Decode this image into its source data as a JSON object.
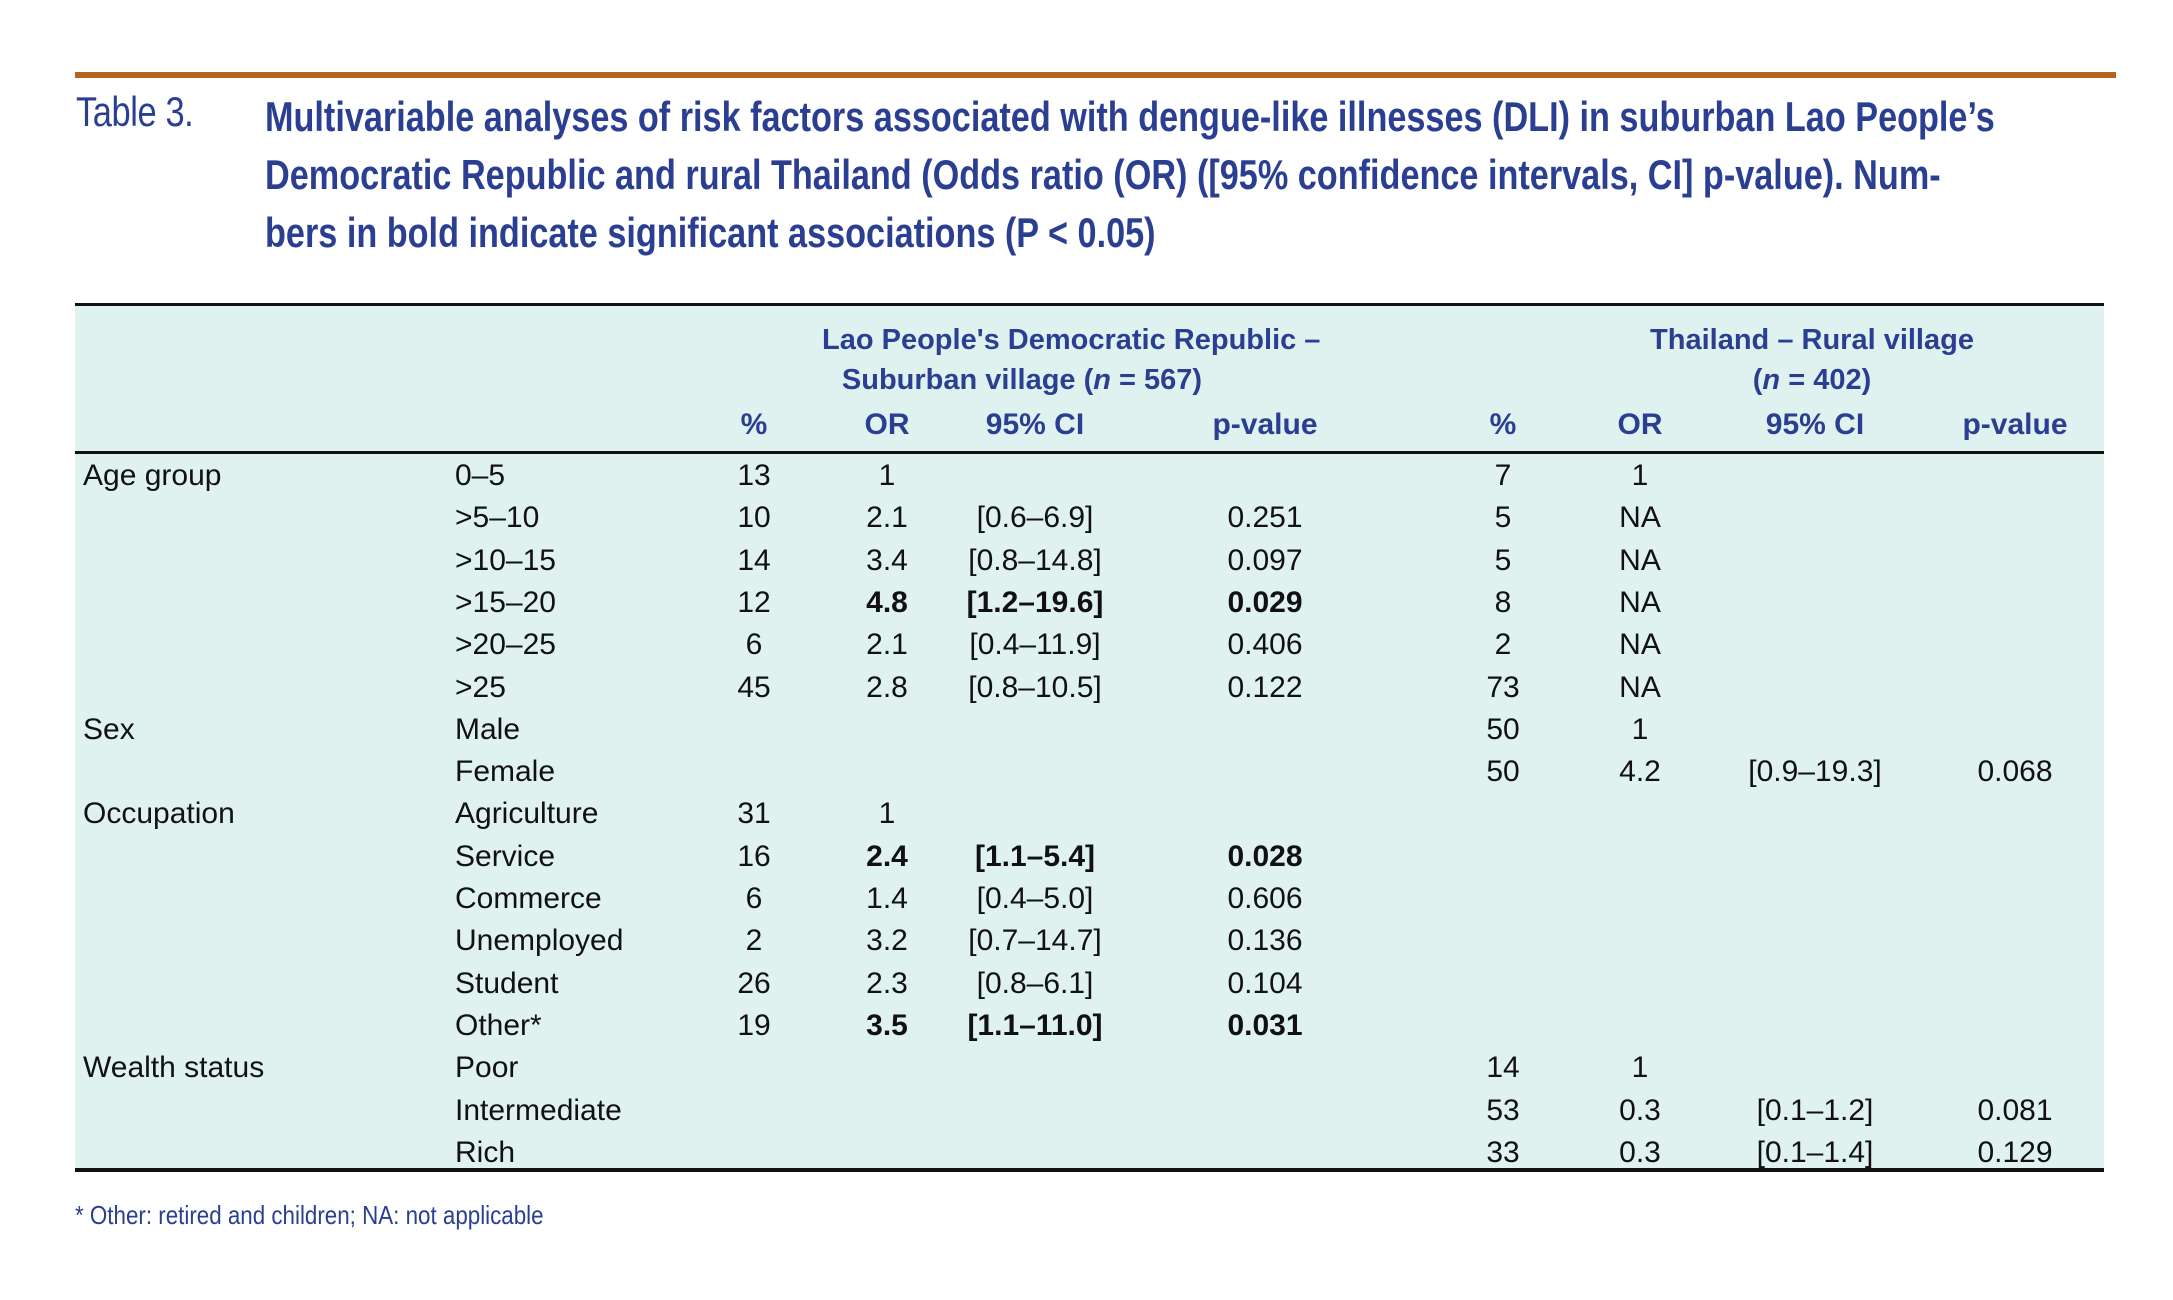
{
  "caption": {
    "label": "Table 3.",
    "lines": [
      "Multivariable analyses of risk factors associated with dengue-like illnesses (DLI) in suburban Lao People’s",
      "Democratic Republic and rural Thailand (Odds ratio (OR) ([95% confidence intervals, CI] p-value). Num-",
      "bers in bold indicate significant associations (P < 0.05)"
    ]
  },
  "colors": {
    "rule": "#b5651d",
    "caption_text": "#2b3f92",
    "table_bg": "#e0f2ef",
    "body_text": "#111111"
  },
  "table": {
    "groups": [
      {
        "line1": "Lao People's Democratic Republic –",
        "line2_prefix": "Suburban village (",
        "n_symbol": "n",
        "line2_suffix": " = 567)"
      },
      {
        "line1": "Thailand – Rural village",
        "line2_prefix": "(",
        "n_symbol": "n",
        "line2_suffix": " = 402)"
      }
    ],
    "column_headers": [
      "%",
      "OR",
      "95% CI",
      "p-value",
      "%",
      "OR",
      "95% CI",
      "p-value"
    ],
    "rows": [
      {
        "category": "Age group",
        "sub": "0–5",
        "lao": [
          "13",
          "1",
          "",
          ""
        ],
        "thai": [
          "7",
          "1",
          "",
          ""
        ],
        "lao_bold": false,
        "thai_bold": false
      },
      {
        "category": "",
        "sub": ">5–10",
        "lao": [
          "10",
          "2.1",
          "[0.6–6.9]",
          "0.251"
        ],
        "thai": [
          "5",
          "NA",
          "",
          ""
        ],
        "lao_bold": false,
        "thai_bold": false
      },
      {
        "category": "",
        "sub": ">10–15",
        "lao": [
          "14",
          "3.4",
          "[0.8–14.8]",
          "0.097"
        ],
        "thai": [
          "5",
          "NA",
          "",
          ""
        ],
        "lao_bold": false,
        "thai_bold": false
      },
      {
        "category": "",
        "sub": ">15–20",
        "lao": [
          "12",
          "4.8",
          "[1.2–19.6]",
          "0.029"
        ],
        "thai": [
          "8",
          "NA",
          "",
          ""
        ],
        "lao_bold": true,
        "thai_bold": false
      },
      {
        "category": "",
        "sub": ">20–25",
        "lao": [
          "6",
          "2.1",
          "[0.4–11.9]",
          "0.406"
        ],
        "thai": [
          "2",
          "NA",
          "",
          ""
        ],
        "lao_bold": false,
        "thai_bold": false
      },
      {
        "category": "",
        "sub": ">25",
        "lao": [
          "45",
          "2.8",
          "[0.8–10.5]",
          "0.122"
        ],
        "thai": [
          "73",
          "NA",
          "",
          ""
        ],
        "lao_bold": false,
        "thai_bold": false
      },
      {
        "category": "Sex",
        "sub": "Male",
        "lao": [
          "",
          "",
          "",
          ""
        ],
        "thai": [
          "50",
          "1",
          "",
          ""
        ],
        "lao_bold": false,
        "thai_bold": false
      },
      {
        "category": "",
        "sub": "Female",
        "lao": [
          "",
          "",
          "",
          ""
        ],
        "thai": [
          "50",
          "4.2",
          "[0.9–19.3]",
          "0.068"
        ],
        "lao_bold": false,
        "thai_bold": false
      },
      {
        "category": "Occupation",
        "sub": "Agriculture",
        "lao": [
          "31",
          "1",
          "",
          ""
        ],
        "thai": [
          "",
          "",
          "",
          ""
        ],
        "lao_bold": false,
        "thai_bold": false
      },
      {
        "category": "",
        "sub": "Service",
        "lao": [
          "16",
          "2.4",
          "[1.1–5.4]",
          "0.028"
        ],
        "thai": [
          "",
          "",
          "",
          ""
        ],
        "lao_bold": true,
        "thai_bold": false
      },
      {
        "category": "",
        "sub": "Commerce",
        "lao": [
          "6",
          "1.4",
          "[0.4–5.0]",
          "0.606"
        ],
        "thai": [
          "",
          "",
          "",
          ""
        ],
        "lao_bold": false,
        "thai_bold": false
      },
      {
        "category": "",
        "sub": "Unemployed",
        "lao": [
          "2",
          "3.2",
          "[0.7–14.7]",
          "0.136"
        ],
        "thai": [
          "",
          "",
          "",
          ""
        ],
        "lao_bold": false,
        "thai_bold": false
      },
      {
        "category": "",
        "sub": "Student",
        "lao": [
          "26",
          "2.3",
          "[0.8–6.1]",
          "0.104"
        ],
        "thai": [
          "",
          "",
          "",
          ""
        ],
        "lao_bold": false,
        "thai_bold": false
      },
      {
        "category": "",
        "sub": "Other*",
        "lao": [
          "19",
          "3.5",
          "[1.1–11.0]",
          "0.031"
        ],
        "thai": [
          "",
          "",
          "",
          ""
        ],
        "lao_bold": true,
        "thai_bold": false
      },
      {
        "category": "Wealth status",
        "sub": "Poor",
        "lao": [
          "",
          "",
          "",
          ""
        ],
        "thai": [
          "14",
          "1",
          "",
          ""
        ],
        "lao_bold": false,
        "thai_bold": false
      },
      {
        "category": "",
        "sub": "Intermediate",
        "lao": [
          "",
          "",
          "",
          ""
        ],
        "thai": [
          "53",
          "0.3",
          "[0.1–1.2]",
          "0.081"
        ],
        "lao_bold": false,
        "thai_bold": false
      },
      {
        "category": "",
        "sub": "Rich",
        "lao": [
          "",
          "",
          "",
          ""
        ],
        "thai": [
          "33",
          "0.3",
          "[0.1–1.4]",
          "0.129"
        ],
        "lao_bold": false,
        "thai_bold": false
      }
    ]
  },
  "footnote": "* Other: retired and children; NA: not applicable"
}
